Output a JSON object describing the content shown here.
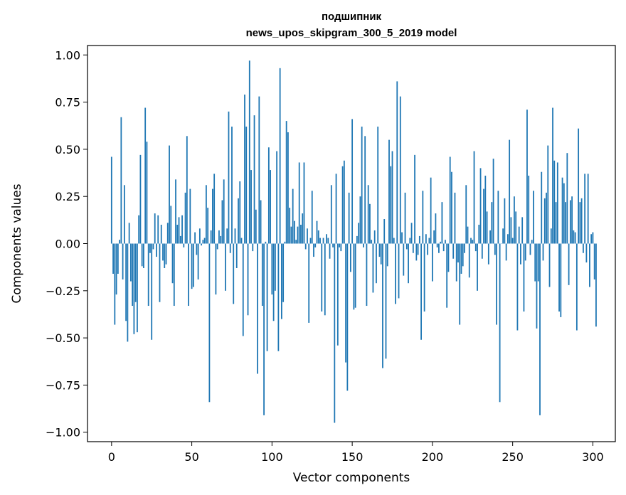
{
  "chart_data": {
    "type": "bar",
    "title_line1": "подшипник",
    "title_line2": "news_upos_skipgram_300_5_2019 model",
    "xlabel": "Vector components",
    "ylabel": "Components values",
    "xlim": [
      -15,
      314
    ],
    "ylim": [
      -1.05,
      1.05
    ],
    "xticks": [
      0,
      50,
      100,
      150,
      200,
      250,
      300
    ],
    "yticks": [
      -1.0,
      -0.75,
      -0.5,
      -0.25,
      0.0,
      0.25,
      0.5,
      0.75,
      1.0
    ],
    "xtick_labels": [
      "0",
      "50",
      "100",
      "150",
      "200",
      "250",
      "300"
    ],
    "ytick_labels": [
      "−1.00",
      "−0.75",
      "−0.50",
      "−0.25",
      "0.00",
      "0.25",
      "0.50",
      "0.75",
      "1.00"
    ],
    "bar_color": "#1f77b4",
    "values": [
      0.46,
      -0.16,
      -0.43,
      -0.27,
      -0.16,
      0.02,
      0.67,
      -0.19,
      0.31,
      -0.41,
      -0.52,
      0.11,
      -0.2,
      -0.33,
      -0.48,
      -0.31,
      -0.47,
      0.15,
      0.47,
      -0.12,
      -0.13,
      0.72,
      0.54,
      -0.33,
      -0.05,
      -0.51,
      -0.03,
      0.16,
      -0.07,
      0.15,
      -0.31,
      0.1,
      -0.09,
      -0.13,
      -0.11,
      0.11,
      0.52,
      0.2,
      -0.21,
      -0.33,
      0.34,
      0.1,
      0.14,
      0.04,
      0.15,
      -0.02,
      0.27,
      0.57,
      -0.33,
      0.29,
      -0.24,
      -0.23,
      0.06,
      -0.06,
      -0.19,
      0.08,
      -0.01,
      0.02,
      0.03,
      0.31,
      0.19,
      -0.84,
      0.07,
      0.29,
      0.37,
      -0.27,
      -0.03,
      0.07,
      0.04,
      0.23,
      0.34,
      -0.25,
      0.08,
      0.7,
      -0.05,
      0.62,
      -0.32,
      0.08,
      -0.13,
      0.24,
      0.33,
      0.03,
      -0.49,
      0.79,
      0.62,
      -0.38,
      0.97,
      0.39,
      -0.04,
      0.68,
      0.18,
      -0.69,
      0.78,
      0.23,
      -0.33,
      -0.91,
      0.01,
      -0.57,
      0.51,
      0.39,
      -0.27,
      -0.41,
      -0.25,
      0.49,
      -0.57,
      0.93,
      -0.4,
      -0.31,
      0.01,
      0.65,
      0.59,
      0.19,
      0.09,
      0.29,
      0.12,
      0.02,
      0.09,
      0.43,
      0.1,
      0.16,
      0.43,
      -0.03,
      0.08,
      -0.42,
      0.03,
      0.28,
      -0.07,
      -0.02,
      0.12,
      0.07,
      0.03,
      -0.36,
      0.03,
      -0.38,
      0.05,
      0.03,
      -0.08,
      0.31,
      -0.02,
      -0.95,
      0.37,
      -0.54,
      -0.02,
      -0.04,
      0.41,
      0.44,
      -0.63,
      -0.78,
      0.27,
      -0.15,
      0.66,
      -0.35,
      -0.34,
      0.04,
      0.11,
      0.25,
      0.62,
      -0.02,
      0.57,
      -0.33,
      0.31,
      0.21,
      0.02,
      -0.26,
      0.07,
      -0.21,
      0.62,
      -0.07,
      -0.11,
      -0.66,
      0.13,
      -0.61,
      -0.12,
      0.55,
      0.41,
      0.49,
      0.03,
      -0.32,
      0.86,
      -0.29,
      0.78,
      0.06,
      -0.17,
      0.27,
      -0.03,
      -0.21,
      0.03,
      0.11,
      -0.05,
      0.47,
      -0.09,
      -0.06,
      0.04,
      -0.51,
      0.28,
      -0.36,
      0.05,
      -0.06,
      0.03,
      0.35,
      -0.2,
      0.07,
      0.16,
      -0.02,
      -0.05,
      0.01,
      0.22,
      -0.04,
      0.02,
      -0.34,
      -0.15,
      0.46,
      0.38,
      -0.08,
      0.27,
      -0.2,
      -0.1,
      -0.43,
      -0.16,
      -0.12,
      -0.05,
      0.31,
      0.09,
      -0.18,
      0.03,
      0.02,
      0.49,
      -0.04,
      -0.25,
      0.1,
      0.4,
      -0.08,
      0.29,
      0.36,
      0.17,
      -0.11,
      0.07,
      0.22,
      0.45,
      -0.06,
      -0.43,
      0.28,
      -0.84,
      0.0,
      0.08,
      0.24,
      -0.09,
      0.05,
      0.55,
      0.14,
      0.03,
      0.25,
      0.17,
      -0.46,
      0.09,
      -0.11,
      0.14,
      -0.36,
      -0.09,
      0.71,
      0.36,
      -0.06,
      0.02,
      0.28,
      -0.2,
      -0.45,
      -0.2,
      -0.91,
      0.38,
      -0.09,
      0.24,
      0.27,
      0.52,
      -0.23,
      0.08,
      0.72,
      0.44,
      0.22,
      0.43,
      -0.36,
      -0.39,
      0.35,
      0.32,
      0.22,
      0.48,
      -0.22,
      0.23,
      0.25,
      0.07,
      0.06,
      -0.46,
      0.61,
      0.22,
      0.24,
      -0.05,
      0.37,
      -0.1,
      0.37,
      -0.23,
      0.05,
      0.06,
      -0.19,
      -0.44
    ]
  }
}
